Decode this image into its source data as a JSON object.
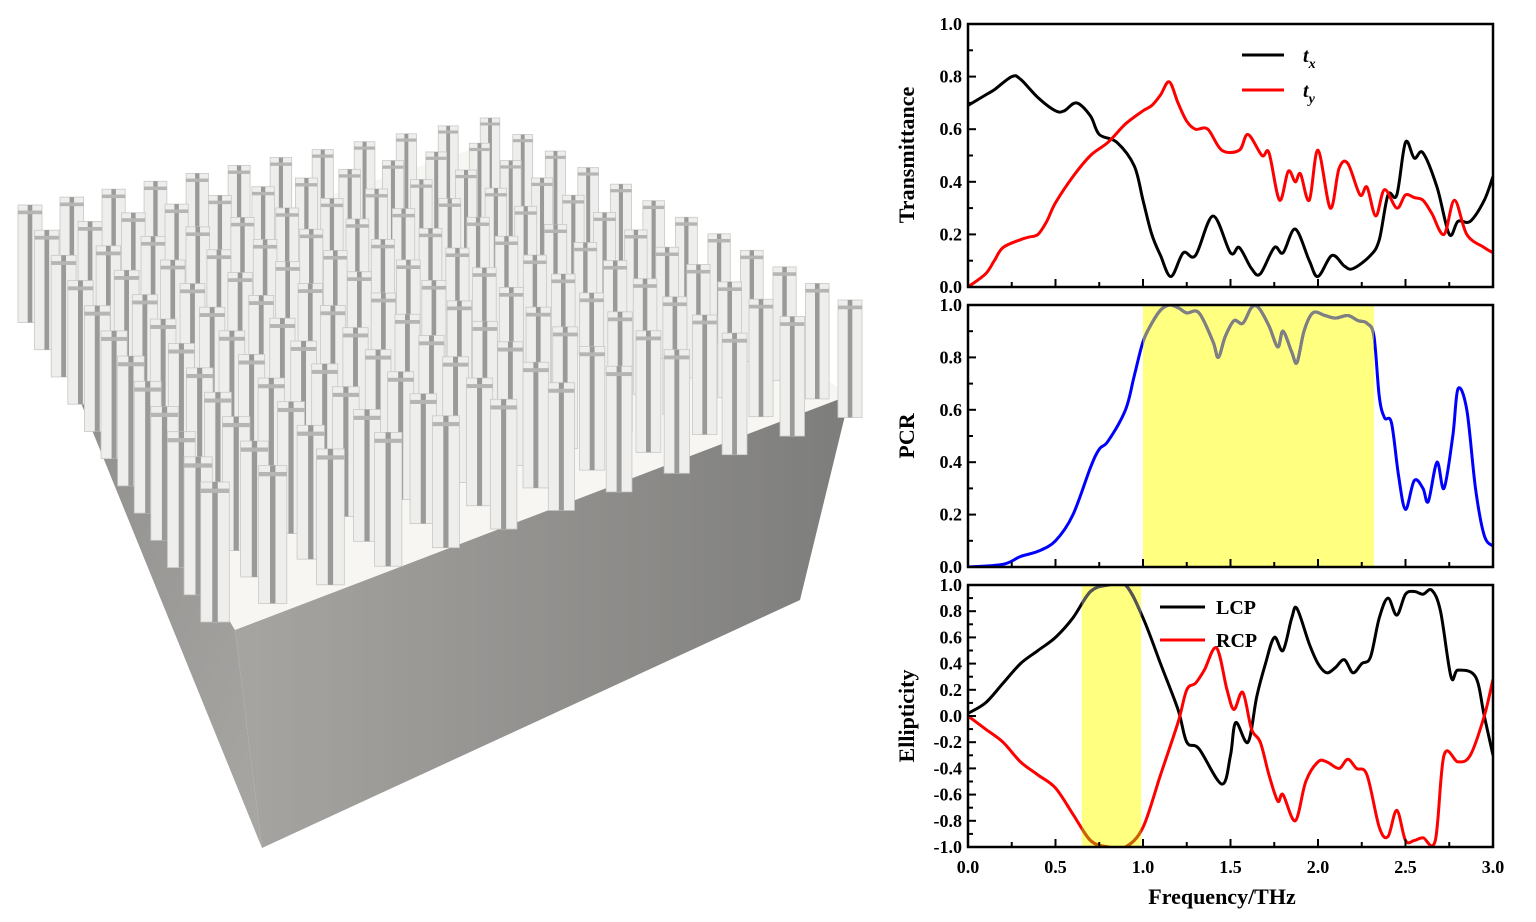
{
  "figure": {
    "render_alt": "metasurface array of cross-shaped pillars on substrate"
  },
  "colors": {
    "black": "#000000",
    "red": "#ff0000",
    "blue": "#0000ff",
    "highlight": "#ffff80",
    "highlight_curve": "#808080"
  },
  "chart_data": [
    {
      "type": "line",
      "ylabel": "Transmittance",
      "xlim": [
        0,
        3.0
      ],
      "ylim": [
        0,
        1.0
      ],
      "xticks": [
        "0.0",
        "0.5",
        "1.0",
        "1.5",
        "2.0",
        "2.5",
        "3.0"
      ],
      "yticks": [
        "0.0",
        "0.2",
        "0.4",
        "0.6",
        "0.8",
        "1.0"
      ],
      "legend_position": "top-center",
      "series": [
        {
          "name": "t",
          "subscript": "x",
          "color": "#000000",
          "x": [
            0,
            0.1,
            0.15,
            0.25,
            0.3,
            0.4,
            0.5,
            0.55,
            0.62,
            0.7,
            0.75,
            0.85,
            0.95,
            1.0,
            1.05,
            1.1,
            1.16,
            1.23,
            1.3,
            1.4,
            1.5,
            1.55,
            1.62,
            1.67,
            1.75,
            1.8,
            1.87,
            1.95,
            2.0,
            2.08,
            2.15,
            2.2,
            2.3,
            2.35,
            2.4,
            2.45,
            2.5,
            2.55,
            2.6,
            2.68,
            2.75,
            2.8,
            2.87,
            2.95,
            3.0
          ],
          "y": [
            0.69,
            0.73,
            0.75,
            0.8,
            0.79,
            0.72,
            0.67,
            0.67,
            0.7,
            0.65,
            0.58,
            0.55,
            0.46,
            0.33,
            0.2,
            0.12,
            0.04,
            0.13,
            0.12,
            0.27,
            0.13,
            0.15,
            0.07,
            0.05,
            0.15,
            0.13,
            0.22,
            0.1,
            0.04,
            0.12,
            0.08,
            0.07,
            0.12,
            0.18,
            0.35,
            0.35,
            0.55,
            0.49,
            0.51,
            0.38,
            0.2,
            0.25,
            0.25,
            0.33,
            0.42
          ]
        },
        {
          "name": "t",
          "subscript": "y",
          "color": "#ff0000",
          "x": [
            0,
            0.1,
            0.15,
            0.2,
            0.3,
            0.35,
            0.4,
            0.45,
            0.5,
            0.6,
            0.7,
            0.8,
            0.9,
            1.0,
            1.05,
            1.1,
            1.15,
            1.2,
            1.25,
            1.3,
            1.37,
            1.45,
            1.55,
            1.6,
            1.68,
            1.72,
            1.78,
            1.83,
            1.87,
            1.9,
            1.95,
            2.0,
            2.07,
            2.12,
            2.17,
            2.24,
            2.28,
            2.33,
            2.38,
            2.45,
            2.5,
            2.55,
            2.6,
            2.65,
            2.72,
            2.78,
            2.85,
            2.95,
            3.0
          ],
          "y": [
            0.0,
            0.05,
            0.1,
            0.15,
            0.18,
            0.19,
            0.2,
            0.25,
            0.32,
            0.42,
            0.5,
            0.55,
            0.62,
            0.67,
            0.69,
            0.73,
            0.78,
            0.7,
            0.63,
            0.6,
            0.6,
            0.52,
            0.52,
            0.58,
            0.5,
            0.51,
            0.33,
            0.44,
            0.4,
            0.43,
            0.33,
            0.52,
            0.3,
            0.45,
            0.47,
            0.35,
            0.38,
            0.27,
            0.37,
            0.3,
            0.35,
            0.34,
            0.33,
            0.28,
            0.2,
            0.33,
            0.2,
            0.15,
            0.13
          ]
        }
      ]
    },
    {
      "type": "line",
      "ylabel": "PCR",
      "xlim": [
        0,
        3.0
      ],
      "ylim": [
        0,
        1.0
      ],
      "yticks": [
        "0.0",
        "0.2",
        "0.4",
        "0.6",
        "0.8",
        "1.0"
      ],
      "highlight_band": [
        1.0,
        2.32
      ],
      "series": [
        {
          "color": "#0000ff",
          "x": [
            0,
            0.2,
            0.3,
            0.4,
            0.5,
            0.6,
            0.7,
            0.75,
            0.8,
            0.9,
            0.95,
            1.0,
            1.05,
            1.1,
            1.15,
            1.2,
            1.25,
            1.32,
            1.4,
            1.43,
            1.47,
            1.52,
            1.57,
            1.62,
            1.66,
            1.72,
            1.77,
            1.8,
            1.85,
            1.88,
            1.92,
            1.97,
            2.04,
            2.1,
            2.17,
            2.23,
            2.28,
            2.32,
            2.35,
            2.38,
            2.42,
            2.46,
            2.5,
            2.55,
            2.6,
            2.63,
            2.68,
            2.72,
            2.77,
            2.8,
            2.85,
            2.9,
            2.95,
            3.0
          ],
          "y": [
            0,
            0.01,
            0.04,
            0.06,
            0.1,
            0.2,
            0.38,
            0.45,
            0.48,
            0.6,
            0.73,
            0.86,
            0.93,
            0.98,
            1.0,
            0.99,
            0.97,
            0.97,
            0.86,
            0.8,
            0.88,
            0.94,
            0.93,
            0.99,
            0.99,
            0.92,
            0.84,
            0.9,
            0.82,
            0.78,
            0.9,
            0.97,
            0.96,
            0.95,
            0.96,
            0.94,
            0.93,
            0.88,
            0.65,
            0.57,
            0.55,
            0.35,
            0.22,
            0.33,
            0.3,
            0.25,
            0.4,
            0.3,
            0.5,
            0.68,
            0.6,
            0.3,
            0.12,
            0.08
          ]
        }
      ]
    },
    {
      "type": "line",
      "ylabel": "Ellipticity",
      "xlabel": "Frequency/THz",
      "xlim": [
        0,
        3.0
      ],
      "ylim": [
        -1.0,
        1.0
      ],
      "yticks": [
        "-1.0",
        "-0.8",
        "-0.6",
        "-0.4",
        "-0.2",
        "0.0",
        "0.2",
        "0.4",
        "0.6",
        "0.8",
        "1.0"
      ],
      "highlight_band": [
        0.65,
        0.99
      ],
      "legend_position": "top-center",
      "series": [
        {
          "name": "LCP",
          "color": "#000000",
          "x": [
            0,
            0.1,
            0.2,
            0.3,
            0.4,
            0.5,
            0.6,
            0.7,
            0.8,
            0.9,
            1.0,
            1.1,
            1.2,
            1.25,
            1.32,
            1.45,
            1.5,
            1.53,
            1.6,
            1.65,
            1.7,
            1.75,
            1.8,
            1.85,
            1.88,
            1.95,
            2.0,
            2.05,
            2.1,
            2.15,
            2.2,
            2.25,
            2.3,
            2.35,
            2.4,
            2.45,
            2.5,
            2.55,
            2.6,
            2.65,
            2.7,
            2.76,
            2.8,
            2.9,
            2.95,
            3.0
          ],
          "y": [
            0.02,
            0.1,
            0.25,
            0.4,
            0.5,
            0.6,
            0.75,
            0.95,
            1.0,
            1.0,
            0.75,
            0.4,
            0.05,
            -0.2,
            -0.25,
            -0.52,
            -0.3,
            -0.05,
            -0.2,
            0.15,
            0.4,
            0.6,
            0.5,
            0.75,
            0.82,
            0.55,
            0.4,
            0.33,
            0.37,
            0.43,
            0.33,
            0.4,
            0.45,
            0.75,
            0.9,
            0.77,
            0.93,
            0.95,
            0.93,
            0.96,
            0.8,
            0.3,
            0.35,
            0.3,
            0.0,
            -0.3
          ]
        },
        {
          "name": "RCP",
          "color": "#ff0000",
          "x": [
            0,
            0.1,
            0.2,
            0.3,
            0.4,
            0.5,
            0.6,
            0.7,
            0.8,
            0.9,
            1.0,
            1.1,
            1.2,
            1.25,
            1.3,
            1.35,
            1.42,
            1.48,
            1.52,
            1.57,
            1.62,
            1.67,
            1.72,
            1.77,
            1.8,
            1.87,
            1.93,
            2.0,
            2.05,
            2.12,
            2.17,
            2.22,
            2.28,
            2.35,
            2.4,
            2.45,
            2.5,
            2.55,
            2.6,
            2.67,
            2.72,
            2.8,
            2.87,
            2.95,
            3.0
          ],
          "y": [
            0.0,
            -0.1,
            -0.2,
            -0.35,
            -0.45,
            -0.55,
            -0.75,
            -0.95,
            -1.0,
            -1.0,
            -0.85,
            -0.45,
            -0.05,
            0.2,
            0.25,
            0.35,
            0.52,
            0.2,
            0.05,
            0.18,
            -0.1,
            -0.2,
            -0.45,
            -0.65,
            -0.6,
            -0.8,
            -0.5,
            -0.35,
            -0.35,
            -0.4,
            -0.33,
            -0.4,
            -0.45,
            -0.85,
            -0.92,
            -0.72,
            -0.95,
            -0.95,
            -0.93,
            -0.95,
            -0.3,
            -0.35,
            -0.3,
            0.0,
            0.28
          ]
        }
      ]
    }
  ]
}
